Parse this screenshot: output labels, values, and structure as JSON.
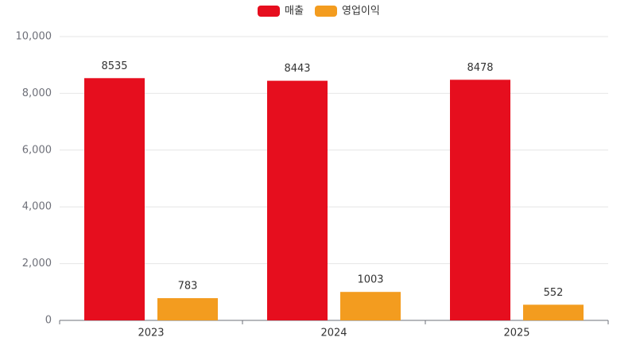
{
  "chart_data": {
    "type": "bar",
    "categories": [
      "2023",
      "2024",
      "2025"
    ],
    "series": [
      {
        "name": "매출",
        "color": "#e60e1e",
        "values": [
          8535,
          8443,
          8478
        ]
      },
      {
        "name": "영업이익",
        "color": "#f39c1f",
        "values": [
          783,
          1003,
          552
        ]
      }
    ],
    "ylim": [
      0,
      10000
    ],
    "yticks": [
      0,
      {
        "value": 2000,
        "label": "2,000"
      },
      {
        "value": 4000,
        "label": "4,000"
      },
      {
        "value": 6000,
        "label": "6,000"
      },
      {
        "value": 8000,
        "label": "8,000"
      },
      {
        "value": 10000,
        "label": "10,000"
      }
    ],
    "grid": true
  }
}
